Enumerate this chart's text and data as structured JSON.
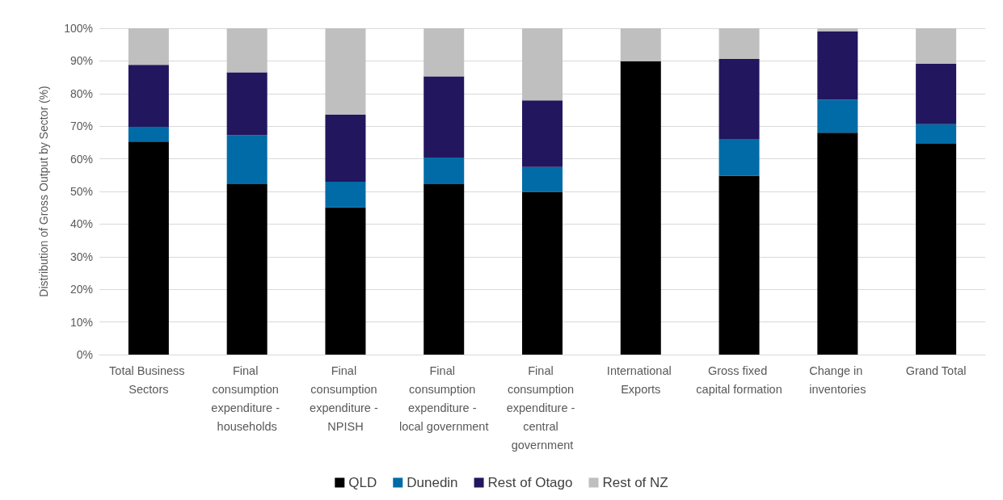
{
  "chart_data": {
    "type": "bar",
    "stacked": true,
    "ylabel": "Distribution of Gross Output by Sector (%)",
    "categories": [
      "Total Business Sectors",
      "Final consumption expenditure - households",
      "Final consumption expenditure - NPISH",
      "Final consumption expenditure - local government",
      "Final consumption expenditure - central government",
      "International Exports",
      "Gross fixed capital formation",
      "Change in inventories",
      "Grand Total"
    ],
    "series": [
      {
        "name": "QLD",
        "color": "#000000",
        "values": [
          65.3,
          52.2,
          45.1,
          52.2,
          49.9,
          89.9,
          54.8,
          68.0,
          64.6
        ]
      },
      {
        "name": "Dunedin",
        "color": "#006ba6",
        "values": [
          4.5,
          15.0,
          7.9,
          8.2,
          7.6,
          0,
          11.3,
          10.1,
          6.0
        ]
      },
      {
        "name": "Rest of Otago",
        "color": "#22165e",
        "values": [
          19.0,
          19.3,
          20.6,
          24.9,
          20.4,
          0,
          24.5,
          20.9,
          18.5
        ]
      },
      {
        "name": "Rest of NZ",
        "color": "#bfbfbf",
        "values": [
          11.2,
          13.5,
          26.4,
          14.7,
          22.1,
          10.1,
          9.4,
          1.0,
          10.9
        ]
      }
    ],
    "ylim": [
      0,
      100
    ],
    "yticks": [
      {
        "value": 0,
        "label": "0%"
      },
      {
        "value": 10,
        "label": "10%"
      },
      {
        "value": 20,
        "label": "20%"
      },
      {
        "value": 30,
        "label": "30%"
      },
      {
        "value": 40,
        "label": "40%"
      },
      {
        "value": 50,
        "label": "50%"
      },
      {
        "value": 60,
        "label": "60%"
      },
      {
        "value": 70,
        "label": "70%"
      },
      {
        "value": 80,
        "label": "80%"
      },
      {
        "value": 90,
        "label": "90%"
      },
      {
        "value": 100,
        "label": "100%"
      }
    ],
    "grid": "y",
    "legend": "bottom"
  }
}
